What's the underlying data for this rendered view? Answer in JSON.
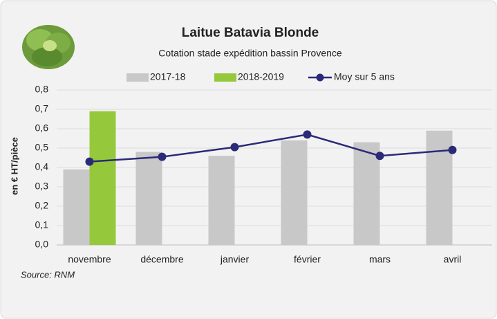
{
  "chart_data": {
    "type": "bar-line",
    "title": "Laitue Batavia Blonde",
    "subtitle": "Cotation stade expédition bassin Provence",
    "y_label": "en € HT/pièce",
    "source": "Source: RNM",
    "categories": [
      "novembre",
      "décembre",
      "janvier",
      "février",
      "mars",
      "avril"
    ],
    "series": [
      {
        "name": "2017-18",
        "type": "bar",
        "color": "#c8c8c8",
        "values": [
          0.39,
          0.48,
          0.46,
          0.54,
          0.53,
          0.59
        ]
      },
      {
        "name": "2018-2019",
        "type": "bar",
        "color": "#96c83c",
        "values": [
          0.69,
          null,
          null,
          null,
          null,
          null
        ]
      },
      {
        "name": "Moy sur 5 ans",
        "type": "line",
        "color": "#2b2a78",
        "values": [
          0.43,
          0.455,
          0.505,
          0.57,
          0.46,
          0.49
        ]
      }
    ],
    "ylim": [
      0,
      0.8
    ],
    "yticks": [
      {
        "value": 0,
        "label": "0,0"
      },
      {
        "value": 0.1,
        "label": "0,1"
      },
      {
        "value": 0.2,
        "label": "0,2"
      },
      {
        "value": 0.3,
        "label": "0,3"
      },
      {
        "value": 0.4,
        "label": "0,4"
      },
      {
        "value": 0.5,
        "label": "0,5"
      },
      {
        "value": 0.6,
        "label": "0,6"
      },
      {
        "value": 0.7,
        "label": "0,7"
      },
      {
        "value": 0.8,
        "label": "0,8"
      }
    ],
    "grid": true
  }
}
